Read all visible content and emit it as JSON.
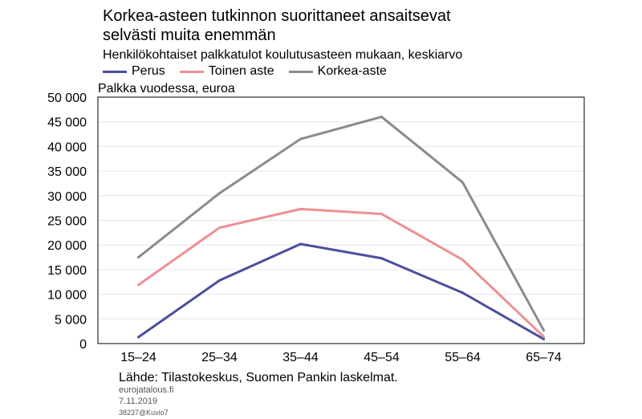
{
  "title_line1": "Korkea-asteen tutkinnon suorittaneet ansaitsevat",
  "title_line2": "selvästi muita enemmän",
  "subtitle": "Henkilökohtaiset palkkatulot koulutusasteen mukaan, keskiarvo",
  "ylabel": "Palkka vuodessa, euroa",
  "source": "Lähde: Tilastokeskus, Suomen Pankin laskelmat.",
  "footer": [
    "eurojatalous.fi",
    "7.11.2019",
    "38237@Kuvio7"
  ],
  "chart_data": {
    "type": "line",
    "categories": [
      "15–24",
      "25–34",
      "35–44",
      "45–54",
      "55–64",
      "65–74"
    ],
    "ylim": [
      0,
      50000
    ],
    "yticks": [
      0,
      5000,
      10000,
      15000,
      20000,
      25000,
      30000,
      35000,
      40000,
      45000,
      50000
    ],
    "ytick_labels": [
      "0",
      "5 000",
      "10 000",
      "15 000",
      "20 000",
      "25 000",
      "30 000",
      "35 000",
      "40 000",
      "45 000",
      "50 000"
    ],
    "grid": true,
    "legend_position": "top-left",
    "series": [
      {
        "name": "Perus",
        "color": "#4a4f9c",
        "values": [
          1300,
          12800,
          20200,
          17300,
          10300,
          900
        ]
      },
      {
        "name": "Toinen aste",
        "color": "#ee8f94",
        "values": [
          11900,
          23500,
          27300,
          26300,
          17000,
          1400
        ]
      },
      {
        "name": "Korkea-aste",
        "color": "#8b8b8b",
        "values": [
          17500,
          30500,
          41500,
          46000,
          32700,
          2700
        ]
      }
    ]
  }
}
